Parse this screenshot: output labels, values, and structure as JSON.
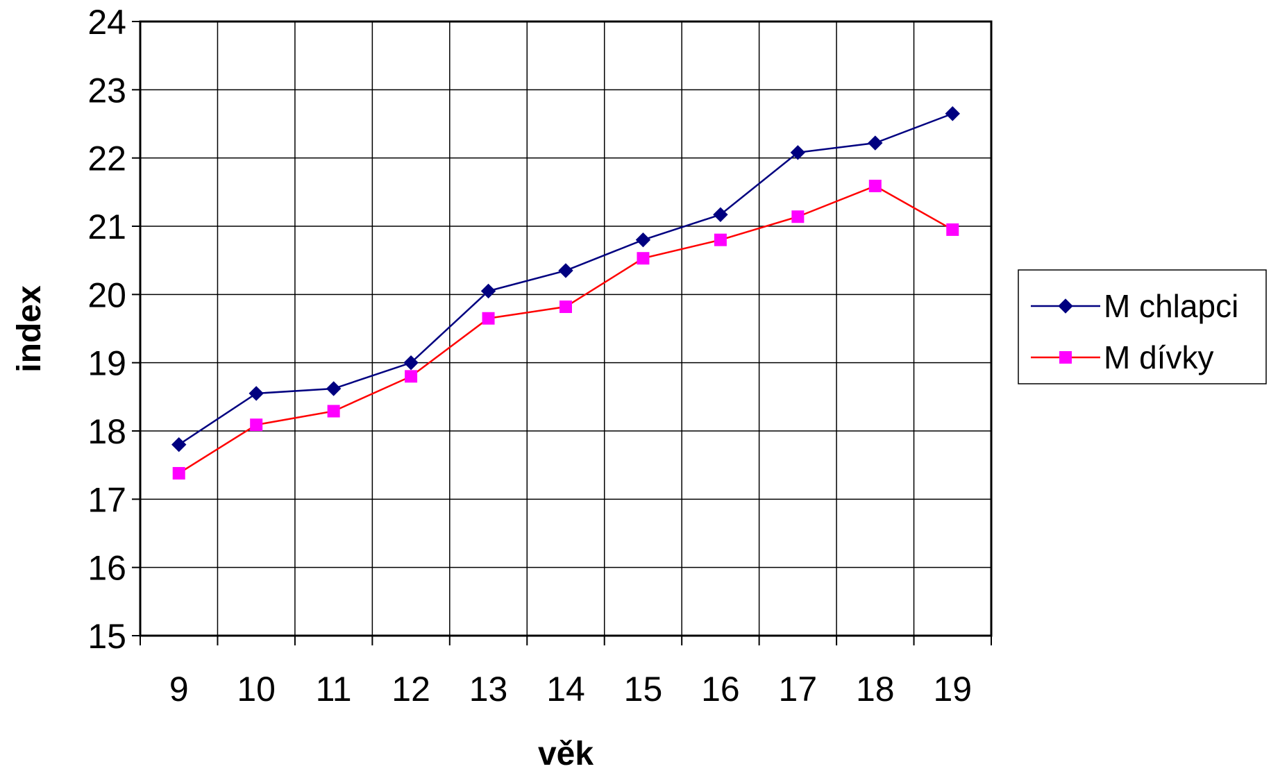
{
  "chart_data": {
    "type": "line",
    "title": "",
    "xlabel": "věk",
    "ylabel": "index",
    "categories": [
      "9",
      "10",
      "11",
      "12",
      "13",
      "14",
      "15",
      "16",
      "17",
      "18",
      "19"
    ],
    "ylim": [
      15,
      24
    ],
    "yticks": [
      "15",
      "16",
      "17",
      "18",
      "19",
      "20",
      "21",
      "22",
      "23",
      "24"
    ],
    "grid": true,
    "legend_position": "right",
    "series": [
      {
        "name": "M chlapci",
        "color": "#000080",
        "marker": "diamond",
        "values": [
          17.8,
          18.55,
          18.62,
          19.0,
          20.05,
          20.35,
          20.8,
          21.17,
          22.08,
          22.22,
          22.65
        ]
      },
      {
        "name": "M dívky",
        "color": "#FF0000",
        "marker_color": "#FF00FF",
        "marker": "square",
        "values": [
          17.38,
          18.09,
          18.29,
          18.8,
          19.65,
          19.82,
          20.53,
          20.8,
          21.14,
          21.59,
          20.95
        ]
      }
    ]
  }
}
